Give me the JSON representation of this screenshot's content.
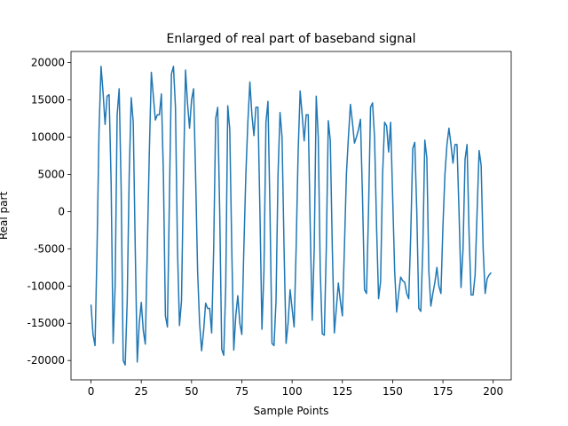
{
  "chart_data": {
    "type": "line",
    "title": "Enlarged of real part of baseband signal",
    "x_label": "Sample Points",
    "y_label": "Real part",
    "x": [
      0,
      1,
      2,
      3,
      4,
      5,
      6,
      7,
      8,
      9,
      10,
      11,
      12,
      13,
      14,
      15,
      16,
      17,
      18,
      19,
      20,
      21,
      22,
      23,
      24,
      25,
      26,
      27,
      28,
      29,
      30,
      31,
      32,
      33,
      34,
      35,
      36,
      37,
      38,
      39,
      40,
      41,
      42,
      43,
      44,
      45,
      46,
      47,
      48,
      49,
      50,
      51,
      52,
      53,
      54,
      55,
      56,
      57,
      58,
      59,
      60,
      61,
      62,
      63,
      64,
      65,
      66,
      67,
      68,
      69,
      70,
      71,
      72,
      73,
      74,
      75,
      76,
      77,
      78,
      79,
      80,
      81,
      82,
      83,
      84,
      85,
      86,
      87,
      88,
      89,
      90,
      91,
      92,
      93,
      94,
      95,
      96,
      97,
      98,
      99,
      100,
      101,
      102,
      103,
      104,
      105,
      106,
      107,
      108,
      109,
      110,
      111,
      112,
      113,
      114,
      115,
      116,
      117,
      118,
      119,
      120,
      121,
      122,
      123,
      124,
      125,
      126,
      127,
      128,
      129,
      130,
      131,
      132,
      133,
      134,
      135,
      136,
      137,
      138,
      139,
      140,
      141,
      142,
      143,
      144,
      145,
      146,
      147,
      148,
      149,
      150,
      151,
      152,
      153,
      154,
      155,
      156,
      157,
      158,
      159,
      160,
      161,
      162,
      163,
      164,
      165,
      166,
      167,
      168,
      169,
      170,
      171,
      172,
      173,
      174,
      175,
      176,
      177,
      178,
      179,
      180,
      181,
      182,
      183,
      184,
      185,
      186,
      187,
      188,
      189,
      190,
      191,
      192,
      193,
      194,
      195,
      196,
      197,
      198,
      199
    ],
    "series": [
      {
        "color": "#1f77b4",
        "values": [
          -12500,
          -16500,
          -18000,
          -5000,
          11000,
          19500,
          16000,
          11700,
          15500,
          15700,
          4000,
          -17700,
          -10000,
          13000,
          16500,
          3000,
          -20000,
          -20600,
          -12000,
          5000,
          15300,
          12000,
          -5000,
          -20200,
          -15000,
          -12200,
          -16000,
          -17800,
          -5000,
          8000,
          18700,
          15500,
          12300,
          13000,
          13000,
          15800,
          5000,
          -14000,
          -15500,
          2000,
          18500,
          19500,
          14000,
          -5000,
          -15300,
          -12000,
          5000,
          19000,
          14500,
          11200,
          15000,
          16500,
          5000,
          -8000,
          -15000,
          -18700,
          -16000,
          -12300,
          -13000,
          -13000,
          -16300,
          -5000,
          12500,
          14000,
          0,
          -18500,
          -19300,
          -10000,
          14200,
          11000,
          -5000,
          -18600,
          -14000,
          -11300,
          -15000,
          -16500,
          -5000,
          5000,
          12000,
          17400,
          13000,
          10200,
          14000,
          14000,
          0,
          -15800,
          -8000,
          12000,
          14800,
          0,
          -17700,
          -18000,
          -12000,
          5000,
          13300,
          10000,
          -5000,
          -17700,
          -15000,
          -10500,
          -13000,
          -15500,
          -5000,
          8000,
          16200,
          13000,
          9500,
          13000,
          13000,
          -2000,
          -14600,
          -5000,
          15500,
          10000,
          -8000,
          -16400,
          -16600,
          -5000,
          12200,
          9500,
          -5000,
          -16300,
          -13000,
          -9600,
          -12000,
          -14000,
          -5000,
          5000,
          10000,
          14400,
          12000,
          9200,
          10000,
          11000,
          12400,
          2000,
          -10500,
          -11000,
          0,
          14000,
          14600,
          10000,
          -2000,
          -11700,
          -9400,
          5000,
          12000,
          11500,
          8000,
          12000,
          2000,
          -8000,
          -13500,
          -11000,
          -8800,
          -9300,
          -9500,
          -11000,
          -11700,
          -3000,
          8500,
          9300,
          0,
          -13000,
          -13400,
          -5000,
          9600,
          7200,
          -8000,
          -12700,
          -11000,
          -9500,
          -7500,
          -10000,
          -11000,
          -2000,
          5000,
          9000,
          11200,
          9000,
          6500,
          9000,
          9000,
          0,
          -10200,
          -5000,
          7000,
          9000,
          -3000,
          -11200,
          -11200,
          -8500,
          0,
          8200,
          6200,
          -5000,
          -11000,
          -9000,
          -8500,
          -8200
        ]
      }
    ],
    "xlim": [
      -9.95,
      208.95
    ],
    "xticks": [
      0,
      25,
      50,
      75,
      100,
      125,
      150,
      175,
      200
    ],
    "ylim": [
      -22600,
      21500
    ],
    "yticks": [
      -20000,
      -15000,
      -10000,
      -5000,
      0,
      5000,
      10000,
      15000,
      20000
    ]
  }
}
